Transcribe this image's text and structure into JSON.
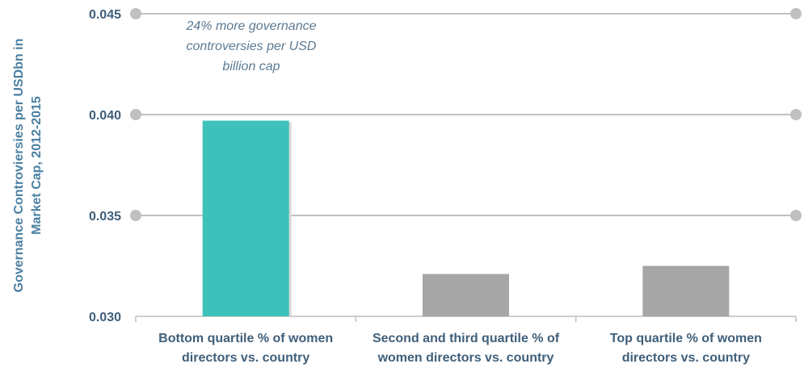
{
  "chart_data": {
    "type": "bar",
    "categories": [
      [
        "Bottom quartile % of women",
        "directors vs. country"
      ],
      [
        "Second and third quartile % of",
        "women directors vs. country"
      ],
      [
        "Top quartile % of women",
        "directors vs. country"
      ]
    ],
    "values": [
      0.0397,
      0.0321,
      0.0325
    ],
    "bar_colors": [
      "#3fc1bb",
      "#a6a6a6",
      "#a6a6a6"
    ],
    "ylabel": [
      "Governance Controviersies per USDbn in",
      "Market Cap, 2012-2015"
    ],
    "ylim": [
      0.03,
      0.045
    ],
    "yticks": [
      "0.030",
      "0.035",
      "0.040",
      "0.045"
    ],
    "ytick_values": [
      0.03,
      0.035,
      0.04,
      0.045
    ],
    "grid": true,
    "annotation": [
      "24% more governance",
      "controversies per USD",
      "billion cap"
    ]
  },
  "colors": {
    "grid": "#c0c0c0",
    "tick_text": "#3f5f7a",
    "axis_title": "#4a7fa2",
    "annotation": "#5b7a93"
  }
}
